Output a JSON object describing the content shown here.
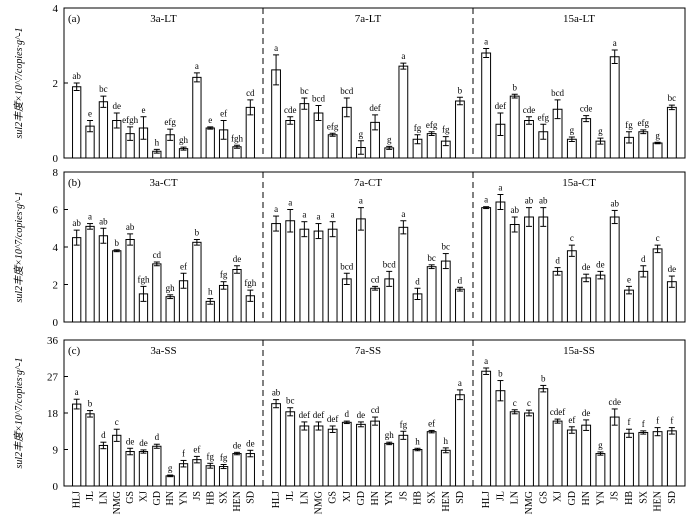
{
  "figure": {
    "x_categories": [
      "HLJ",
      "JL",
      "LN",
      "NMG",
      "GS",
      "XJ",
      "GD",
      "HN",
      "YN",
      "JS",
      "HB",
      "SX",
      "HEN",
      "SD"
    ]
  },
  "chart_data": [
    {
      "type": "bar",
      "panel_label": "(a)",
      "ylabel": "sul2丰度×10^7/copies·g^-1",
      "ylim": [
        0,
        4
      ],
      "yticks": [
        "0",
        "2",
        "4"
      ],
      "categories": [
        "HLJ",
        "JL",
        "LN",
        "NMG",
        "GS",
        "XJ",
        "GD",
        "HN",
        "YN",
        "JS",
        "HB",
        "SX",
        "HEN",
        "SD"
      ],
      "groups": [
        {
          "name": "3a-LT",
          "values": [
            1.9,
            0.85,
            1.5,
            1.0,
            0.65,
            0.8,
            0.18,
            0.62,
            0.25,
            2.15,
            0.8,
            0.75,
            0.3,
            1.35
          ],
          "errors": [
            0.1,
            0.15,
            0.15,
            0.2,
            0.18,
            0.3,
            0.05,
            0.15,
            0.04,
            0.12,
            0.03,
            0.25,
            0.04,
            0.2
          ],
          "labels": [
            "ab",
            "e",
            "bc",
            "de",
            "efgh",
            "e",
            "h",
            "efg",
            "gh",
            "a",
            "e",
            "ef",
            "fgh",
            "cd"
          ]
        },
        {
          "name": "7a-LT",
          "values": [
            2.35,
            1.0,
            1.45,
            1.2,
            0.62,
            1.35,
            0.28,
            0.95,
            0.27,
            2.45,
            0.5,
            0.65,
            0.45,
            1.52
          ],
          "errors": [
            0.4,
            0.1,
            0.15,
            0.2,
            0.04,
            0.25,
            0.18,
            0.2,
            0.04,
            0.08,
            0.12,
            0.05,
            0.12,
            0.1
          ],
          "labels": [
            "a",
            "cde",
            "bc",
            "bcd",
            "efg",
            "bcd",
            "g",
            "def",
            "g",
            "a",
            "fg",
            "efg",
            "fg",
            "b"
          ]
        },
        {
          "name": "15a-LT",
          "values": [
            2.8,
            0.9,
            1.65,
            1.0,
            0.7,
            1.3,
            0.5,
            1.05,
            0.45,
            2.7,
            0.55,
            0.7,
            0.4,
            1.35
          ],
          "errors": [
            0.12,
            0.3,
            0.05,
            0.1,
            0.2,
            0.25,
            0.06,
            0.08,
            0.08,
            0.18,
            0.15,
            0.05,
            0.02,
            0.06
          ],
          "labels": [
            "a",
            "def",
            "b",
            "cde",
            "efg",
            "bcd",
            "g",
            "cde",
            "g",
            "a",
            "fg",
            "efg",
            "g",
            "bc"
          ]
        }
      ]
    },
    {
      "type": "bar",
      "panel_label": "(b)",
      "ylabel": "sul2丰度×10^7/copies·g^-1",
      "ylim": [
        0,
        8
      ],
      "yticks": [
        "0",
        "2",
        "4",
        "6",
        "8"
      ],
      "categories": [
        "HLJ",
        "JL",
        "LN",
        "NMG",
        "GS",
        "XJ",
        "GD",
        "HN",
        "YN",
        "JS",
        "HB",
        "SX",
        "HEN",
        "SD"
      ],
      "groups": [
        {
          "name": "3a-CT",
          "values": [
            4.5,
            5.1,
            4.6,
            3.8,
            4.4,
            1.5,
            3.1,
            1.35,
            2.2,
            4.25,
            1.1,
            1.95,
            2.8,
            1.4
          ],
          "errors": [
            0.4,
            0.15,
            0.4,
            0.05,
            0.3,
            0.4,
            0.1,
            0.1,
            0.4,
            0.15,
            0.15,
            0.2,
            0.2,
            0.3
          ],
          "labels": [
            "ab",
            "a",
            "ab",
            "b",
            "ab",
            "fgh",
            "cd",
            "gh",
            "ef",
            "b",
            "h",
            "fg",
            "de",
            "fgh"
          ]
        },
        {
          "name": "7a-CT",
          "values": [
            5.25,
            5.4,
            4.95,
            4.85,
            4.95,
            2.3,
            5.5,
            1.8,
            2.3,
            5.05,
            1.5,
            2.95,
            3.25,
            1.75
          ],
          "errors": [
            0.4,
            0.6,
            0.4,
            0.4,
            0.4,
            0.3,
            0.6,
            0.1,
            0.4,
            0.35,
            0.3,
            0.1,
            0.4,
            0.1
          ],
          "labels": [
            "a",
            "a",
            "a",
            "a",
            "a",
            "bcd",
            "a",
            "cd",
            "bcd",
            "a",
            "d",
            "bc",
            "bc",
            "d"
          ]
        },
        {
          "name": "15a-CT",
          "values": [
            6.1,
            6.4,
            5.2,
            5.6,
            5.6,
            2.7,
            3.8,
            2.35,
            2.5,
            5.6,
            1.7,
            2.7,
            3.9,
            2.15
          ],
          "errors": [
            0.05,
            0.4,
            0.4,
            0.5,
            0.5,
            0.2,
            0.3,
            0.2,
            0.2,
            0.35,
            0.2,
            0.3,
            0.2,
            0.3
          ],
          "labels": [
            "a",
            "a",
            "ab",
            "ab",
            "ab",
            "d",
            "c",
            "de",
            "de",
            "ab",
            "e",
            "d",
            "c",
            "de"
          ]
        }
      ]
    },
    {
      "type": "bar",
      "panel_label": "(c)",
      "ylabel": "sul2丰度×10^7/copies·g^-1",
      "ylim": [
        0,
        36
      ],
      "yticks": [
        "0",
        "9",
        "18",
        "27",
        "36"
      ],
      "categories": [
        "HLJ",
        "JL",
        "LN",
        "NMG",
        "GS",
        "XJ",
        "GD",
        "HN",
        "YN",
        "JS",
        "HB",
        "SX",
        "HEN",
        "SD"
      ],
      "groups": [
        {
          "name": "3a-SS",
          "values": [
            20.2,
            17.8,
            10.0,
            12.5,
            8.5,
            8.5,
            9.8,
            2.5,
            5.5,
            6.5,
            5.0,
            4.8,
            8.0,
            8.0
          ],
          "errors": [
            1.2,
            0.8,
            0.8,
            1.5,
            0.8,
            0.4,
            0.5,
            0.2,
            0.8,
            0.8,
            0.6,
            0.5,
            0.3,
            0.8
          ],
          "labels": [
            "a",
            "b",
            "d",
            "c",
            "de",
            "de",
            "d",
            "g",
            "f",
            "ef",
            "fg",
            "fg",
            "de",
            "de"
          ]
        },
        {
          "name": "7a-SS",
          "values": [
            20.3,
            18.3,
            14.8,
            14.8,
            14.0,
            15.7,
            15.2,
            16.0,
            10.5,
            12.5,
            9.0,
            13.4,
            8.8,
            22.5
          ],
          "errors": [
            1.0,
            1.0,
            1.0,
            1.0,
            0.8,
            0.3,
            0.6,
            1.0,
            0.3,
            1.0,
            0.3,
            0.3,
            0.6,
            1.2
          ],
          "labels": [
            "ab",
            "bc",
            "def",
            "def",
            "def",
            "d",
            "de",
            "cd",
            "gh",
            "fg",
            "h",
            "ef",
            "h",
            "a"
          ]
        },
        {
          "name": "15a-SS",
          "values": [
            28.3,
            23.5,
            18.3,
            18.0,
            24.0,
            16.0,
            13.8,
            15.0,
            8.0,
            17.0,
            13.0,
            13.2,
            13.4,
            13.6
          ],
          "errors": [
            0.8,
            2.5,
            0.5,
            0.7,
            0.8,
            0.5,
            0.8,
            1.3,
            0.4,
            2.0,
            1.0,
            0.4,
            1.0,
            0.8
          ],
          "labels": [
            "a",
            "b",
            "c",
            "c",
            "b",
            "cdef",
            "ef",
            "de",
            "g",
            "cde",
            "f",
            "f",
            "f",
            "f"
          ]
        }
      ]
    }
  ]
}
